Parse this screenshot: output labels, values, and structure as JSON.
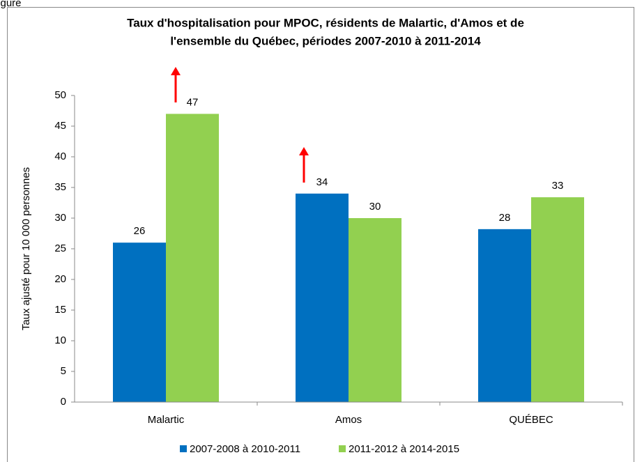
{
  "figure_label": "Figure",
  "chart_data": {
    "type": "bar",
    "title": [
      "Taux d'hospitalisation pour MPOC, résidents de Malartic, d'Amos et de",
      "l'ensemble du Québec, périodes 2007-2010 à 2011-2014"
    ],
    "ylabel": "Taux ajusté pour 10 000 personnes",
    "categories": [
      "Malartic",
      "Amos",
      "QUÉBEC"
    ],
    "series": [
      {
        "name": "2007-2008 à 2010-2011",
        "color": "#0070c0",
        "values": [
          26,
          34,
          28.2
        ],
        "value_labels": [
          "26",
          "34",
          "28"
        ]
      },
      {
        "name": "2011-2012 à 2014-2015",
        "color": "#92d050",
        "values": [
          47,
          30,
          33.4
        ],
        "value_labels": [
          "47",
          "30",
          "33"
        ]
      }
    ],
    "ylim": [
      0,
      50
    ],
    "yticks": [
      0,
      5,
      10,
      15,
      20,
      25,
      30,
      35,
      40,
      45,
      50
    ],
    "legend": "bottom"
  }
}
